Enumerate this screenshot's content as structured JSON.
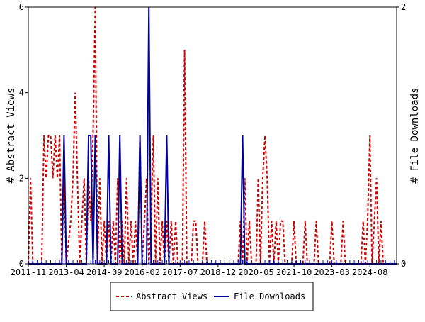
{
  "chart_data": {
    "type": "line",
    "ylabel_left": "# Abstract Views",
    "ylabel_right": "# File Downloads",
    "ylim_left": [
      0,
      6
    ],
    "ylim_right": [
      0,
      2
    ],
    "yticks_left": [
      "0",
      "2",
      "4",
      "6"
    ],
    "yticks_right": [
      "0",
      "2"
    ],
    "xlim": [
      "2011-11",
      "2025-08"
    ],
    "xticks": [
      "2011-11",
      "2013-04",
      "2014-09",
      "2016-02",
      "2017-07",
      "2018-12",
      "2020-05",
      "2021-10",
      "2023-03",
      "2024-08"
    ],
    "grid": false,
    "legend_position": "bottom",
    "series": [
      {
        "name": "Abstract Views",
        "axis": "left",
        "color": "#cc0000",
        "style": "dashed",
        "points": [
          [
            "2011-11",
            0
          ],
          [
            "2011-12",
            2
          ],
          [
            "2012-01",
            0
          ],
          [
            "2012-05",
            0
          ],
          [
            "2012-06",
            3
          ],
          [
            "2012-07",
            2
          ],
          [
            "2012-08",
            3
          ],
          [
            "2012-09",
            3
          ],
          [
            "2012-10",
            2
          ],
          [
            "2012-11",
            3
          ],
          [
            "2012-12",
            2
          ],
          [
            "2013-01",
            3
          ],
          [
            "2013-02",
            0
          ],
          [
            "2013-03",
            2
          ],
          [
            "2013-04",
            0
          ],
          [
            "2013-06",
            1
          ],
          [
            "2013-07",
            2
          ],
          [
            "2013-08",
            4
          ],
          [
            "2013-09",
            2
          ],
          [
            "2013-10",
            0
          ],
          [
            "2013-11",
            1
          ],
          [
            "2013-12",
            2
          ],
          [
            "2014-01",
            0
          ],
          [
            "2014-02",
            2
          ],
          [
            "2014-03",
            1
          ],
          [
            "2014-04",
            3
          ],
          [
            "2014-05",
            6
          ],
          [
            "2014-06",
            0
          ],
          [
            "2014-07",
            2
          ],
          [
            "2014-08",
            0
          ],
          [
            "2014-09",
            1
          ],
          [
            "2014-10",
            0
          ],
          [
            "2014-11",
            1
          ],
          [
            "2014-12",
            0
          ],
          [
            "2015-01",
            1
          ],
          [
            "2015-02",
            0
          ],
          [
            "2015-03",
            2
          ],
          [
            "2015-04",
            0
          ],
          [
            "2015-05",
            1
          ],
          [
            "2015-06",
            0
          ],
          [
            "2015-07",
            2
          ],
          [
            "2015-08",
            0
          ],
          [
            "2015-09",
            1
          ],
          [
            "2015-10",
            0
          ],
          [
            "2015-11",
            1
          ],
          [
            "2015-12",
            0
          ],
          [
            "2016-01",
            3
          ],
          [
            "2016-02",
            0
          ],
          [
            "2016-03",
            1
          ],
          [
            "2016-04",
            2
          ],
          [
            "2016-05",
            0
          ],
          [
            "2016-06",
            1
          ],
          [
            "2016-07",
            3
          ],
          [
            "2016-08",
            0
          ],
          [
            "2016-09",
            2
          ],
          [
            "2016-10",
            0
          ],
          [
            "2016-11",
            1
          ],
          [
            "2016-12",
            0
          ],
          [
            "2017-01",
            1
          ],
          [
            "2017-02",
            0
          ],
          [
            "2017-03",
            1
          ],
          [
            "2017-04",
            0
          ],
          [
            "2017-05",
            1
          ],
          [
            "2017-06",
            0
          ],
          [
            "2017-08",
            0
          ],
          [
            "2017-09",
            5
          ],
          [
            "2017-10",
            0
          ],
          [
            "2017-12",
            0
          ],
          [
            "2018-01",
            1
          ],
          [
            "2018-02",
            1
          ],
          [
            "2018-03",
            0
          ],
          [
            "2018-05",
            0
          ],
          [
            "2018-06",
            1
          ],
          [
            "2018-07",
            0
          ],
          [
            "2019-09",
            0
          ],
          [
            "2019-10",
            1
          ],
          [
            "2019-11",
            0
          ],
          [
            "2019-12",
            2
          ],
          [
            "2020-01",
            0
          ],
          [
            "2020-02",
            1
          ],
          [
            "2020-03",
            0
          ],
          [
            "2020-05",
            0
          ],
          [
            "2020-06",
            2
          ],
          [
            "2020-07",
            0
          ],
          [
            "2020-08",
            2
          ],
          [
            "2020-09",
            3
          ],
          [
            "2020-10",
            2
          ],
          [
            "2020-11",
            0
          ],
          [
            "2020-12",
            1
          ],
          [
            "2021-01",
            0
          ],
          [
            "2021-02",
            1
          ],
          [
            "2021-03",
            0
          ],
          [
            "2021-04",
            1
          ],
          [
            "2021-05",
            1
          ],
          [
            "2021-06",
            0
          ],
          [
            "2021-09",
            0
          ],
          [
            "2021-10",
            1
          ],
          [
            "2021-11",
            0
          ],
          [
            "2022-02",
            0
          ],
          [
            "2022-03",
            1
          ],
          [
            "2022-04",
            0
          ],
          [
            "2022-07",
            0
          ],
          [
            "2022-08",
            1
          ],
          [
            "2022-09",
            0
          ],
          [
            "2023-02",
            0
          ],
          [
            "2023-03",
            1
          ],
          [
            "2023-04",
            0
          ],
          [
            "2023-07",
            0
          ],
          [
            "2023-08",
            1
          ],
          [
            "2023-09",
            0
          ],
          [
            "2024-04",
            0
          ],
          [
            "2024-05",
            1
          ],
          [
            "2024-06",
            0
          ],
          [
            "2024-07",
            1
          ],
          [
            "2024-08",
            3
          ],
          [
            "2024-09",
            0
          ],
          [
            "2024-10",
            1
          ],
          [
            "2024-11",
            2
          ],
          [
            "2024-12",
            0
          ],
          [
            "2025-01",
            1
          ],
          [
            "2025-02",
            0
          ],
          [
            "2025-08",
            0
          ]
        ]
      },
      {
        "name": "File Downloads",
        "axis": "right",
        "color": "#000099",
        "style": "solid",
        "points": [
          [
            "2011-11",
            0
          ],
          [
            "2013-02",
            0
          ],
          [
            "2013-03",
            1
          ],
          [
            "2013-04",
            0
          ],
          [
            "2014-01",
            0
          ],
          [
            "2014-02",
            1
          ],
          [
            "2014-03",
            1
          ],
          [
            "2014-04",
            0
          ],
          [
            "2014-05",
            1
          ],
          [
            "2014-06",
            0
          ],
          [
            "2014-10",
            0
          ],
          [
            "2014-11",
            1
          ],
          [
            "2014-12",
            0
          ],
          [
            "2015-03",
            0
          ],
          [
            "2015-04",
            1
          ],
          [
            "2015-05",
            0
          ],
          [
            "2015-12",
            0
          ],
          [
            "2016-01",
            1
          ],
          [
            "2016-02",
            0
          ],
          [
            "2016-04",
            0
          ],
          [
            "2016-05",
            2
          ],
          [
            "2016-06",
            0
          ],
          [
            "2016-12",
            0
          ],
          [
            "2017-01",
            1
          ],
          [
            "2017-02",
            0
          ],
          [
            "2019-10",
            0
          ],
          [
            "2019-11",
            1
          ],
          [
            "2019-12",
            0
          ],
          [
            "2025-08",
            0
          ]
        ]
      }
    ]
  }
}
